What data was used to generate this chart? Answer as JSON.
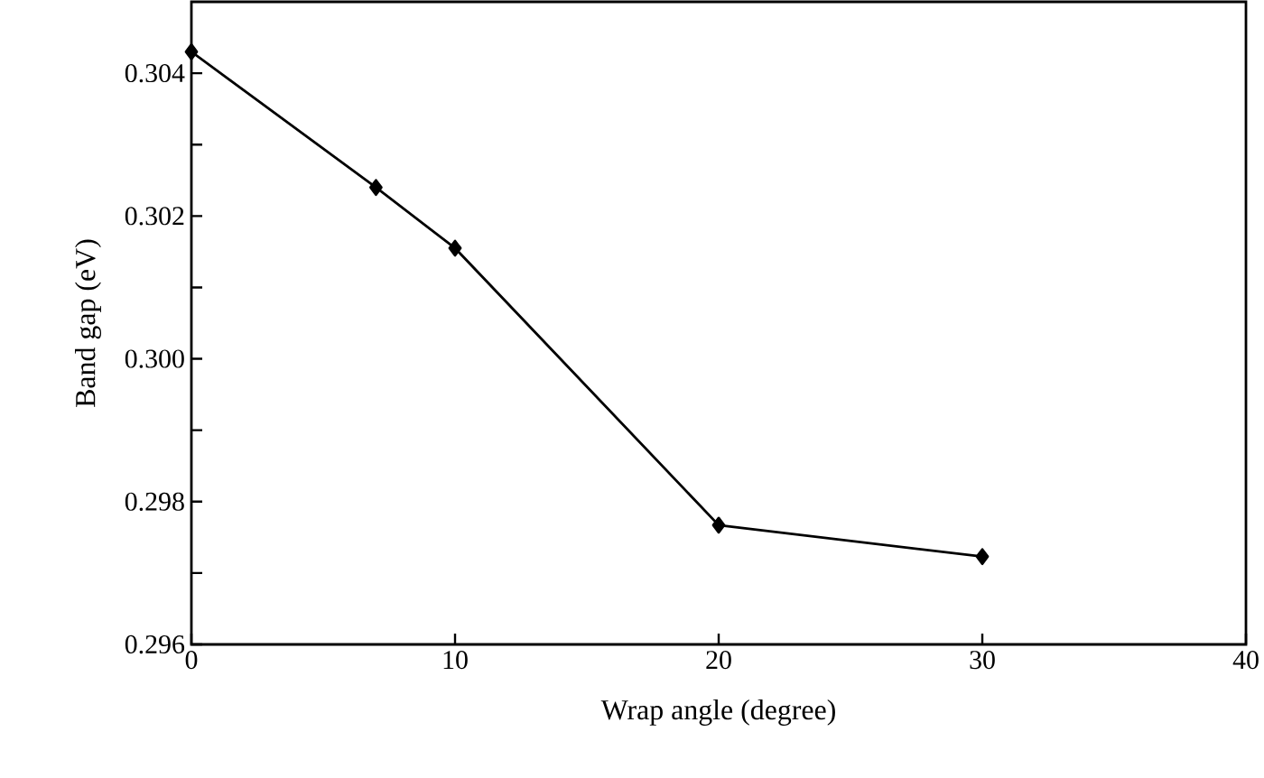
{
  "chart_data": {
    "type": "line",
    "xlabel": "Wrap angle (degree)",
    "ylabel": "Band gap (eV)",
    "x": [
      0,
      7,
      10,
      20,
      30
    ],
    "series": [
      {
        "color": "#000000",
        "values": [
          0.3043,
          0.3024,
          0.30155,
          0.29767,
          0.29723
        ]
      }
    ],
    "xlim": [
      0,
      40
    ],
    "xticks": [
      0,
      10,
      20,
      30,
      40
    ],
    "ylim": [
      0.296,
      0.305
    ],
    "yticks": [
      0.296,
      {
        "value": 0.297,
        "label": null
      },
      0.298,
      {
        "value": 0.299,
        "label": null
      },
      {
        "value": 0.3,
        "label": "0.300"
      },
      {
        "value": 0.301,
        "label": null
      },
      0.302,
      {
        "value": 0.303,
        "label": null
      },
      0.304
    ],
    "marker": "diamond",
    "line_style": "solid",
    "grid": false
  }
}
